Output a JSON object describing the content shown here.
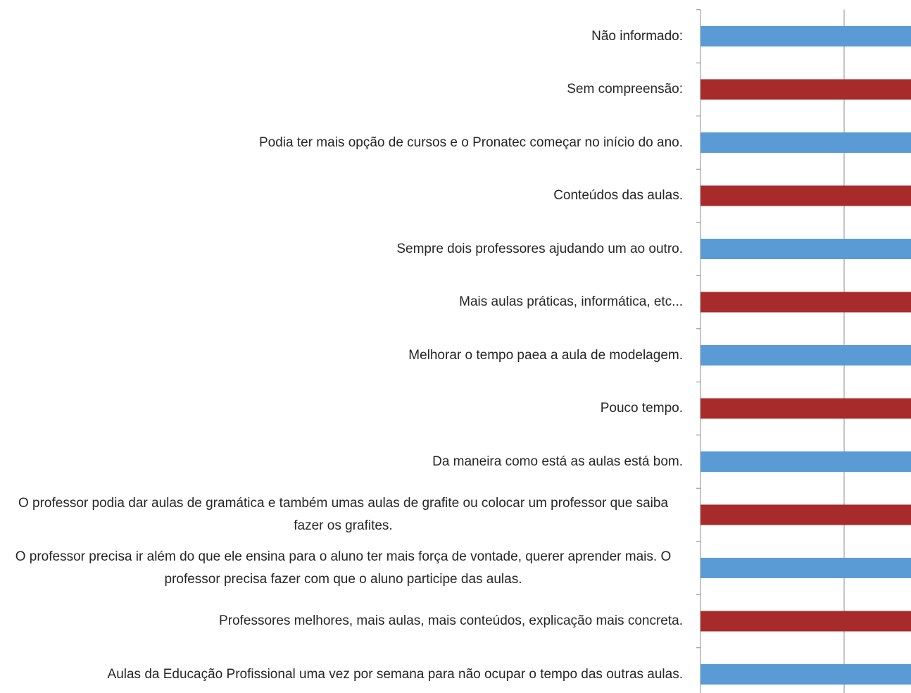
{
  "chart_data": {
    "type": "barh",
    "categories": [
      "Não informado:",
      "Sem compreensão:",
      "Podia ter mais opção de cursos e o Pronatec começar no início do ano.",
      "Conteúdos das aulas.",
      "Sempre dois professores ajudando um ao outro.",
      "Mais aulas práticas, informática, etc...",
      "Melhorar o tempo paea a aula de modelagem.",
      "Pouco tempo.",
      "Da maneira como está as aulas está bom.",
      "O professor podia dar aulas de gramática e também umas aulas de grafite ou colocar um professor que saiba fazer os grafites.",
      "O professor precisa ir além do que ele ensina para o aluno ter mais força de vontade, querer aprender mais. O professor precisa fazer com que o aluno participe das aulas.",
      "Professores melhores, mais aulas, mais conteúdos, explicação mais concreta.",
      "Aulas da Educação Profissional uma vez por semana para não ocupar o tempo das outras aulas."
    ],
    "values": [
      2,
      2,
      2,
      2,
      2,
      2,
      2,
      2,
      2,
      2,
      2,
      2,
      2
    ],
    "colors": [
      "#5b9bd5",
      "#a82b2b",
      "#5b9bd5",
      "#a82b2b",
      "#5b9bd5",
      "#a82b2b",
      "#5b9bd5",
      "#a82b2b",
      "#5b9bd5",
      "#a82b2b",
      "#5b9bd5",
      "#a82b2b",
      "#5b9bd5"
    ],
    "xlim": [
      0,
      1.5
    ],
    "xticks": [
      0,
      1
    ],
    "grid": true
  }
}
